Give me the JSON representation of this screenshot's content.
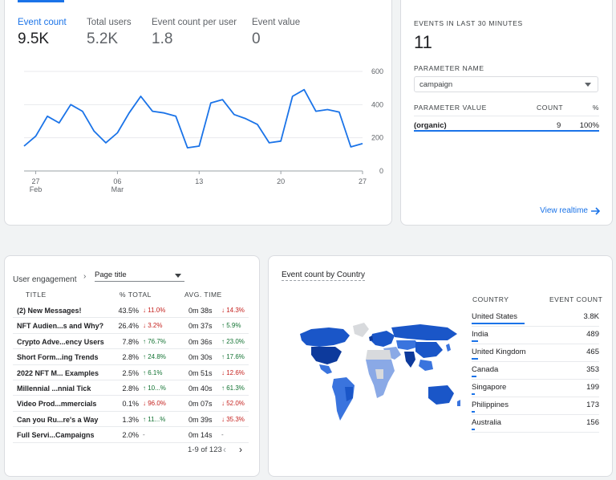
{
  "overview": {
    "metrics": [
      {
        "label": "Event count",
        "value": "9.5K"
      },
      {
        "label": "Total users",
        "value": "5.2K"
      },
      {
        "label": "Event count per user",
        "value": "1.8"
      },
      {
        "label": "Event value",
        "value": "0"
      }
    ],
    "chart_data": {
      "type": "line",
      "y_ticks": [
        "600",
        "400",
        "200",
        "0"
      ],
      "ylim": [
        0,
        600
      ],
      "x_ticks": [
        {
          "day": "27",
          "month": "Feb"
        },
        {
          "day": "06",
          "month": "Mar"
        },
        {
          "day": "13",
          "month": ""
        },
        {
          "day": "20",
          "month": ""
        },
        {
          "day": "27",
          "month": ""
        }
      ],
      "values": [
        150,
        210,
        330,
        290,
        400,
        360,
        240,
        170,
        230,
        350,
        450,
        360,
        350,
        330,
        140,
        150,
        410,
        430,
        340,
        315,
        280,
        170,
        180,
        450,
        490,
        360,
        370,
        355,
        145,
        165
      ],
      "color": "#1a73e8"
    }
  },
  "realtime": {
    "title": "EVENTS IN LAST 30 MINUTES",
    "count": "11",
    "parameter_name_label": "PARAMETER NAME",
    "parameter_value": "campaign",
    "col_value": "PARAMETER VALUE",
    "col_count": "COUNT",
    "col_pct": "%",
    "rows": [
      {
        "value": "(organic)",
        "count": "9",
        "pct": "100%"
      }
    ],
    "link": "View realtime"
  },
  "engagement": {
    "title": "User engagement",
    "dropdown": "Page title",
    "col_title": "TITLE",
    "col_pct": "% TOTAL",
    "col_time": "AVG. TIME",
    "rows": [
      {
        "title": "(2) New Messages!",
        "pct": "43.5%",
        "pct_delta": "11.0%",
        "pct_dir": "down",
        "time": "0m 38s",
        "time_delta": "14.3%",
        "time_dir": "down"
      },
      {
        "title": "NFT Audien...s and Why?",
        "pct": "26.4%",
        "pct_delta": "3.2%",
        "pct_dir": "down",
        "time": "0m 37s",
        "time_delta": "5.9%",
        "time_dir": "up"
      },
      {
        "title": "Crypto Adve...ency Users",
        "pct": "7.8%",
        "pct_delta": "76.7%",
        "pct_dir": "up",
        "time": "0m 36s",
        "time_delta": "23.0%",
        "time_dir": "up"
      },
      {
        "title": "Short Form...ing Trends",
        "pct": "2.8%",
        "pct_delta": "24.8%",
        "pct_dir": "up",
        "time": "0m 30s",
        "time_delta": "17.6%",
        "time_dir": "up"
      },
      {
        "title": "2022 NFT M... Examples",
        "pct": "2.5%",
        "pct_delta": "6.1%",
        "pct_dir": "up",
        "time": "0m 51s",
        "time_delta": "12.6%",
        "time_dir": "down"
      },
      {
        "title": "Millennial ...nnial Tick",
        "pct": "2.8%",
        "pct_delta": "10...%",
        "pct_dir": "up",
        "time": "0m 40s",
        "time_delta": "61.3%",
        "time_dir": "up"
      },
      {
        "title": "Video Prod...mmercials",
        "pct": "0.1%",
        "pct_delta": "96.0%",
        "pct_dir": "down",
        "time": "0m 07s",
        "time_delta": "52.0%",
        "time_dir": "down"
      },
      {
        "title": "Can you Ru...re's a Way",
        "pct": "1.3%",
        "pct_delta": "11...%",
        "pct_dir": "up",
        "time": "0m 39s",
        "time_delta": "35.3%",
        "time_dir": "down"
      },
      {
        "title": "Full Servi...Campaigns",
        "pct": "2.0%",
        "pct_delta": "-",
        "pct_dir": "none",
        "time": "0m 14s",
        "time_delta": "-",
        "time_dir": "none"
      }
    ],
    "pager": "1-9 of 123"
  },
  "country": {
    "title": "Event count by Country",
    "col_country": "COUNTRY",
    "col_count": "EVENT COUNT",
    "rows": [
      {
        "name": "United States",
        "count": "3.8K",
        "value": 3800
      },
      {
        "name": "India",
        "count": "489",
        "value": 489
      },
      {
        "name": "United Kingdom",
        "count": "465",
        "value": 465
      },
      {
        "name": "Canada",
        "count": "353",
        "value": 353
      },
      {
        "name": "Singapore",
        "count": "199",
        "value": 199
      },
      {
        "name": "Philippines",
        "count": "173",
        "value": 173
      },
      {
        "name": "Australia",
        "count": "156",
        "value": 156
      }
    ]
  },
  "colors": {
    "accent": "#1a73e8",
    "up": "#137333",
    "down": "#c5221f"
  }
}
